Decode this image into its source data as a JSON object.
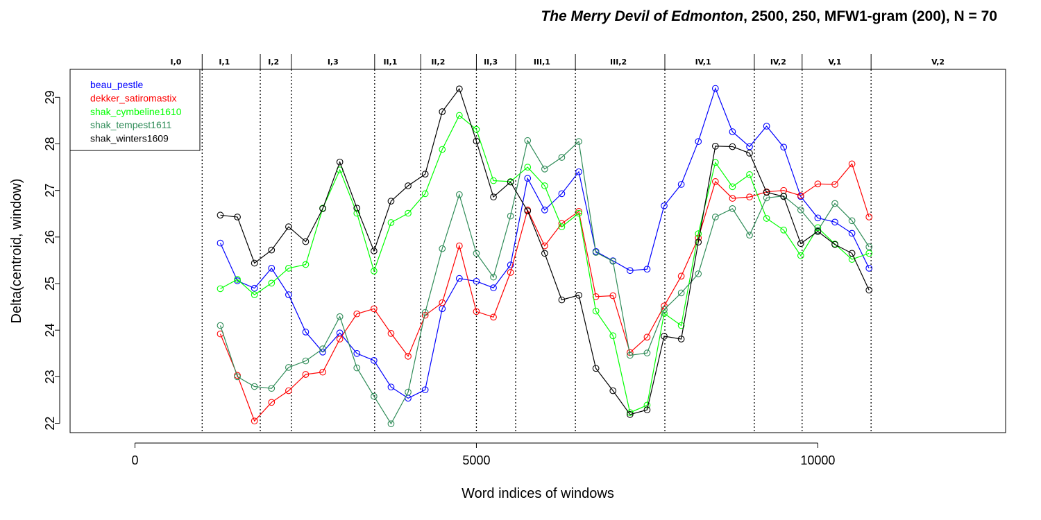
{
  "chart_data": {
    "type": "line",
    "title_italic": "The Merry Devil of Edmonton",
    "title_rest": ", 2500, 250, MFW1-gram (200), N = 70",
    "xlabel": "Word indices of windows",
    "ylabel": "Delta(centroid, window)",
    "xlim": [
      -950,
      12750
    ],
    "ylim": [
      21.8,
      29.6
    ],
    "x_ticks": [
      0,
      5000,
      10000
    ],
    "x_tick_labels": [
      "0",
      "5000",
      "10000"
    ],
    "y_ticks": [
      22,
      23,
      24,
      25,
      26,
      27,
      28,
      29
    ],
    "y_tick_labels": [
      "22",
      "23",
      "24",
      "25",
      "26",
      "27",
      "28",
      "29"
    ],
    "legend_position": "top-left",
    "act_boundaries": [
      984,
      1835,
      2290,
      3510,
      4185,
      5000,
      5575,
      6450,
      7760,
      9070,
      9770,
      10780
    ],
    "act_labels": [
      {
        "label": "I,0",
        "x": 600
      },
      {
        "label": "I,1",
        "x": 1310
      },
      {
        "label": "I,2",
        "x": 2030
      },
      {
        "label": "I,3",
        "x": 2900
      },
      {
        "label": "II,1",
        "x": 3740
      },
      {
        "label": "II,2",
        "x": 4440
      },
      {
        "label": "II,3",
        "x": 5210
      },
      {
        "label": "III,1",
        "x": 5960
      },
      {
        "label": "III,2",
        "x": 7080
      },
      {
        "label": "IV,1",
        "x": 8320
      },
      {
        "label": "IV,2",
        "x": 9420
      },
      {
        "label": "V,1",
        "x": 10250
      },
      {
        "label": "V,2",
        "x": 11760
      }
    ],
    "x": [
      1250,
      1500,
      1750,
      2000,
      2250,
      2500,
      2750,
      3000,
      3250,
      3500,
      3750,
      4000,
      4250,
      4500,
      4750,
      5000,
      5250,
      5500,
      5750,
      6000,
      6250,
      6500,
      6750,
      7000,
      7250,
      7500,
      7750,
      8000,
      8250,
      8500,
      8750,
      9000,
      9250,
      9500,
      9750,
      10000,
      10250,
      10500,
      10750
    ],
    "series": [
      {
        "name": "beau_pestle",
        "color": "#0000ff",
        "values": [
          25.87,
          25.06,
          24.9,
          25.33,
          24.76,
          23.96,
          23.53,
          23.94,
          23.5,
          23.35,
          22.78,
          22.54,
          22.72,
          24.46,
          25.11,
          25.05,
          24.91,
          25.4,
          27.26,
          26.58,
          26.93,
          27.4,
          25.69,
          25.49,
          25.28,
          25.31,
          26.67,
          27.13,
          28.05,
          29.19,
          28.26,
          27.94,
          28.38,
          27.93,
          26.87,
          26.41,
          26.32,
          26.08,
          25.33
        ]
      },
      {
        "name": "dekker_satiromastix",
        "color": "#ff0000",
        "values": [
          23.92,
          23.03,
          22.05,
          22.45,
          22.7,
          23.05,
          23.1,
          23.81,
          24.35,
          24.46,
          23.93,
          23.44,
          24.32,
          24.59,
          25.81,
          24.4,
          24.28,
          25.24,
          26.58,
          25.81,
          26.29,
          26.55,
          24.72,
          24.74,
          23.52,
          23.85,
          24.52,
          25.16,
          25.98,
          27.19,
          26.83,
          26.86,
          26.97,
          27.0,
          26.89,
          27.14,
          27.13,
          27.57,
          26.43
        ]
      },
      {
        "name": "shak_cymbeline1610",
        "color": "#00ff00",
        "values": [
          24.89,
          25.09,
          24.76,
          25.01,
          25.33,
          25.41,
          26.62,
          27.44,
          26.51,
          25.27,
          26.31,
          26.51,
          26.93,
          27.88,
          28.61,
          28.31,
          27.21,
          27.19,
          27.5,
          27.1,
          26.22,
          26.51,
          24.41,
          23.88,
          22.23,
          22.39,
          24.36,
          24.1,
          26.07,
          27.6,
          27.08,
          27.34,
          26.4,
          26.15,
          25.6,
          26.2,
          25.85,
          25.52,
          25.65
        ]
      },
      {
        "name": "shak_tempest1611",
        "color": "#2e8b57",
        "values": [
          24.1,
          23.0,
          22.79,
          22.75,
          23.2,
          23.34,
          23.6,
          24.29,
          23.19,
          22.58,
          21.99,
          22.67,
          24.38,
          25.75,
          26.91,
          25.65,
          25.14,
          26.45,
          28.07,
          27.46,
          27.71,
          28.05,
          25.67,
          25.48,
          23.46,
          23.51,
          24.44,
          24.8,
          25.21,
          26.43,
          26.61,
          26.04,
          26.84,
          26.88,
          26.58,
          26.14,
          26.72,
          26.35,
          25.79
        ]
      },
      {
        "name": "shak_winters1609",
        "color": "#000000",
        "values": [
          26.47,
          26.43,
          25.44,
          25.72,
          26.22,
          25.9,
          26.61,
          27.61,
          26.62,
          25.7,
          26.77,
          27.1,
          27.35,
          28.69,
          29.18,
          28.06,
          26.86,
          27.18,
          26.56,
          25.65,
          24.65,
          24.75,
          23.18,
          22.7,
          22.19,
          22.29,
          23.87,
          23.81,
          25.89,
          27.95,
          27.94,
          27.8,
          26.96,
          26.87,
          25.86,
          26.12,
          25.84,
          25.65,
          24.86
        ]
      }
    ]
  }
}
